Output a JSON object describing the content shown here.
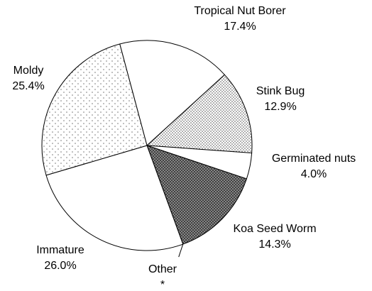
{
  "chart_data": {
    "type": "pie",
    "categories": [
      "Tropical Nut Borer",
      "Stink Bug",
      "Germinated nuts",
      "Koa Seed Worm",
      "Other",
      "Immature",
      "Moldy"
    ],
    "values": [
      17.4,
      12.9,
      4.0,
      14.3,
      0,
      26.0,
      25.4
    ],
    "value_labels": [
      "17.4%",
      "12.9%",
      "4.0%",
      "14.3%",
      "*",
      "26.0%",
      "25.4%"
    ],
    "fills": [
      "white",
      "dense-dots",
      "white",
      "crosshatch",
      "white",
      "white",
      "sparse-dots"
    ]
  }
}
